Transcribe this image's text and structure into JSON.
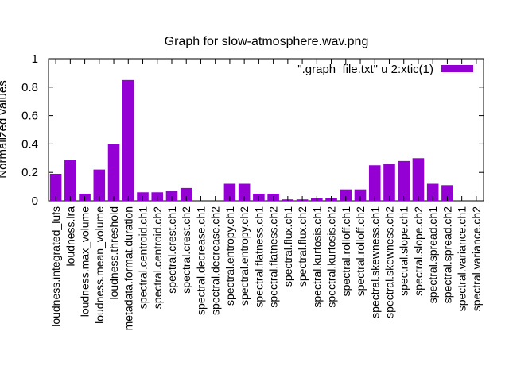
{
  "chart_data": {
    "type": "bar",
    "title": "Graph for slow-atmosphere.wav.png",
    "ylabel": "Normalized values",
    "xlabel": "",
    "ylim": [
      0,
      1
    ],
    "yticks": [
      "0",
      "0.2",
      "0.4",
      "0.6",
      "0.8",
      "1"
    ],
    "legend_position": "top-right",
    "grid": false,
    "bar_color": "#9400d3",
    "series": [
      {
        "name": "\".graph_file.txt\" u 2:xtic(1)",
        "values": [
          0.19,
          0.29,
          0.05,
          0.22,
          0.4,
          0.85,
          0.06,
          0.06,
          0.07,
          0.09,
          0.0,
          0.0,
          0.12,
          0.12,
          0.05,
          0.05,
          0.01,
          0.01,
          0.02,
          0.02,
          0.08,
          0.08,
          0.25,
          0.26,
          0.28,
          0.3,
          0.12,
          0.11,
          0.0,
          0.0
        ]
      }
    ],
    "categories": [
      "loudness.integrated_lufs",
      "loudness.lra",
      "loudness.max_volume",
      "loudness.mean_volume",
      "loudness.threshold",
      "metadata.format.duration",
      "spectral.centroid.ch1",
      "spectral.centroid.ch2",
      "spectral.crest.ch1",
      "spectral.crest.ch2",
      "spectral.decrease.ch1",
      "spectral.decrease.ch2",
      "spectral.entropy.ch1",
      "spectral.entropy.ch2",
      "spectral.flatness.ch1",
      "spectral.flatness.ch2",
      "spectral.flux.ch1",
      "spectral.flux.ch2",
      "spectral.kurtosis.ch1",
      "spectral.kurtosis.ch2",
      "spectral.rolloff.ch1",
      "spectral.rolloff.ch2",
      "spectral.skewness.ch1",
      "spectral.skewness.ch2",
      "spectral.slope.ch1",
      "spectral.slope.ch2",
      "spectral.spread.ch1",
      "spectral.spread.ch2",
      "spectral.variance.ch1",
      "spectral.variance.ch2"
    ]
  }
}
